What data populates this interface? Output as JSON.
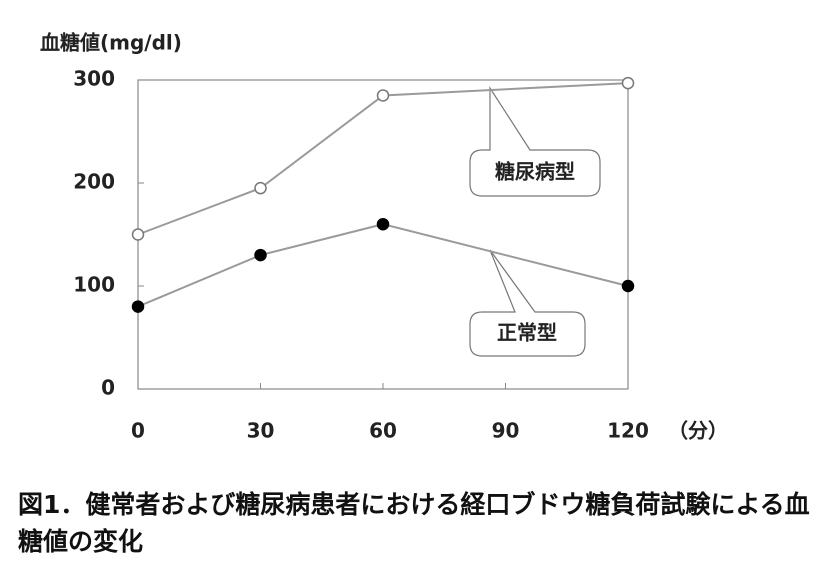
{
  "chart_data": {
    "type": "line",
    "y_label": "血糖値(mg/dl)",
    "x_unit": "（分）",
    "caption": "図1．健常者および糖尿病患者における経口ブドウ糖負荷試験による血糖値の変化",
    "x": [
      0,
      30,
      60,
      120
    ],
    "xlim": [
      0,
      120
    ],
    "xticks": [
      0,
      30,
      60,
      90,
      120
    ],
    "ylim": [
      0,
      300
    ],
    "yticks": [
      0,
      100,
      200,
      300
    ],
    "line_color": "#9a9a9a",
    "series": [
      {
        "name": "糖尿病型",
        "color": "#ffffff",
        "values": [
          150,
          195,
          285,
          297
        ]
      },
      {
        "name": "正常型",
        "color": "#000000",
        "values": [
          80,
          130,
          160,
          100
        ]
      }
    ]
  }
}
